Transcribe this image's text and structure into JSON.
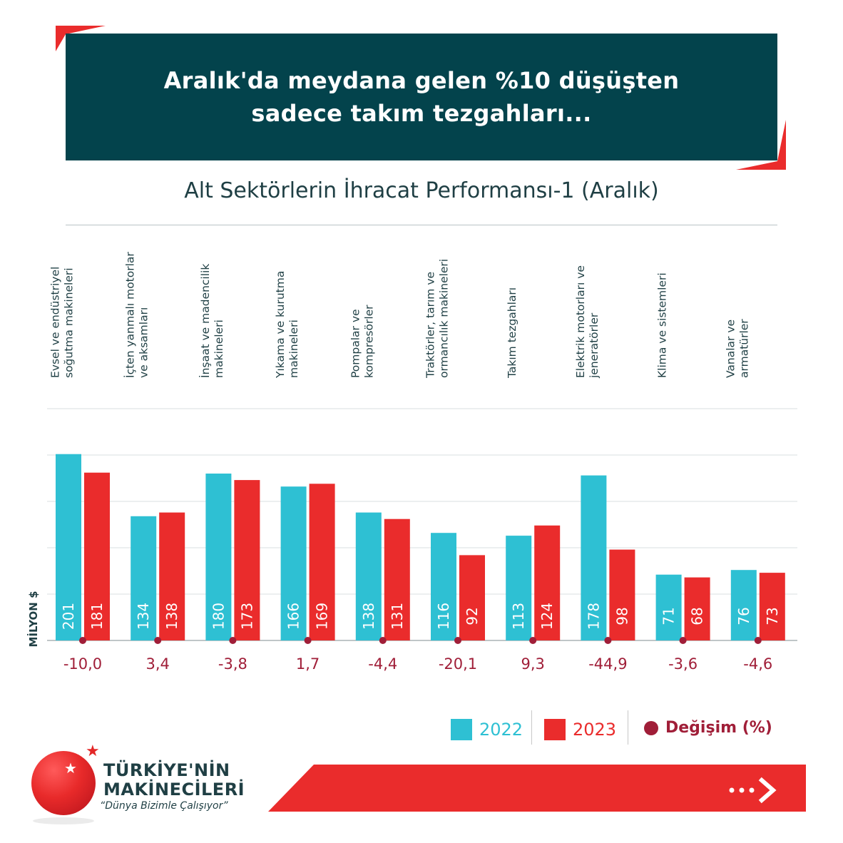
{
  "header": {
    "line1": "Aralık'da meydana gelen %10 düşüşten",
    "line2": "sadece takım tezgahları..."
  },
  "chart_data": {
    "type": "bar",
    "title": "Alt Sektörlerin İhracat Performansı-1 (Aralık)",
    "ylabel": "MİLYON $",
    "ylim": [
      0,
      250
    ],
    "grid": true,
    "categories": [
      [
        "Evsel ve endüstriyel",
        "soğutma makineleri"
      ],
      [
        "İçten yanmalı motorlar",
        "ve aksamları"
      ],
      [
        "İnşaat ve madencilik",
        "makineleri"
      ],
      [
        "Yıkama ve kurutma",
        "makineleri"
      ],
      [
        "Pompalar ve",
        "kompresörler"
      ],
      [
        "Traktörler, tarım ve",
        "ormancılık makineleri"
      ],
      [
        "Takım tezgahları"
      ],
      [
        "Elektrik motorları ve",
        "jeneratörler"
      ],
      [
        "Klima ve sistemleri"
      ],
      [
        "Vanalar ve",
        "armatürler"
      ]
    ],
    "series": [
      {
        "name": "2022",
        "color": "#2ec0d3",
        "values": [
          201,
          134,
          180,
          166,
          138,
          116,
          113,
          178,
          71,
          76
        ]
      },
      {
        "name": "2023",
        "color": "#ea2c2c",
        "values": [
          181,
          138,
          173,
          169,
          131,
          92,
          124,
          98,
          68,
          73
        ]
      }
    ],
    "change_name": "Değişim (%)",
    "change_color": "#a01e38",
    "change_labels": [
      "-10,0",
      "3,4",
      "-3,8",
      "1,7",
      "-4,4",
      "-20,1",
      "9,3",
      "-44,9",
      "-3,6",
      "-4,6"
    ]
  },
  "logo": {
    "line1": "TÜRKİYE'NİN",
    "line2": "MAKİNECİLERİ",
    "slogan": "“Dünya Bizimle Çalışıyor”",
    "next_icon": "chevron-right-icon"
  },
  "colors": {
    "header_bg": "#03434c",
    "accent_red": "#ea2c2c",
    "teal": "#2ec0d3",
    "text_dark": "#1f3f44"
  }
}
